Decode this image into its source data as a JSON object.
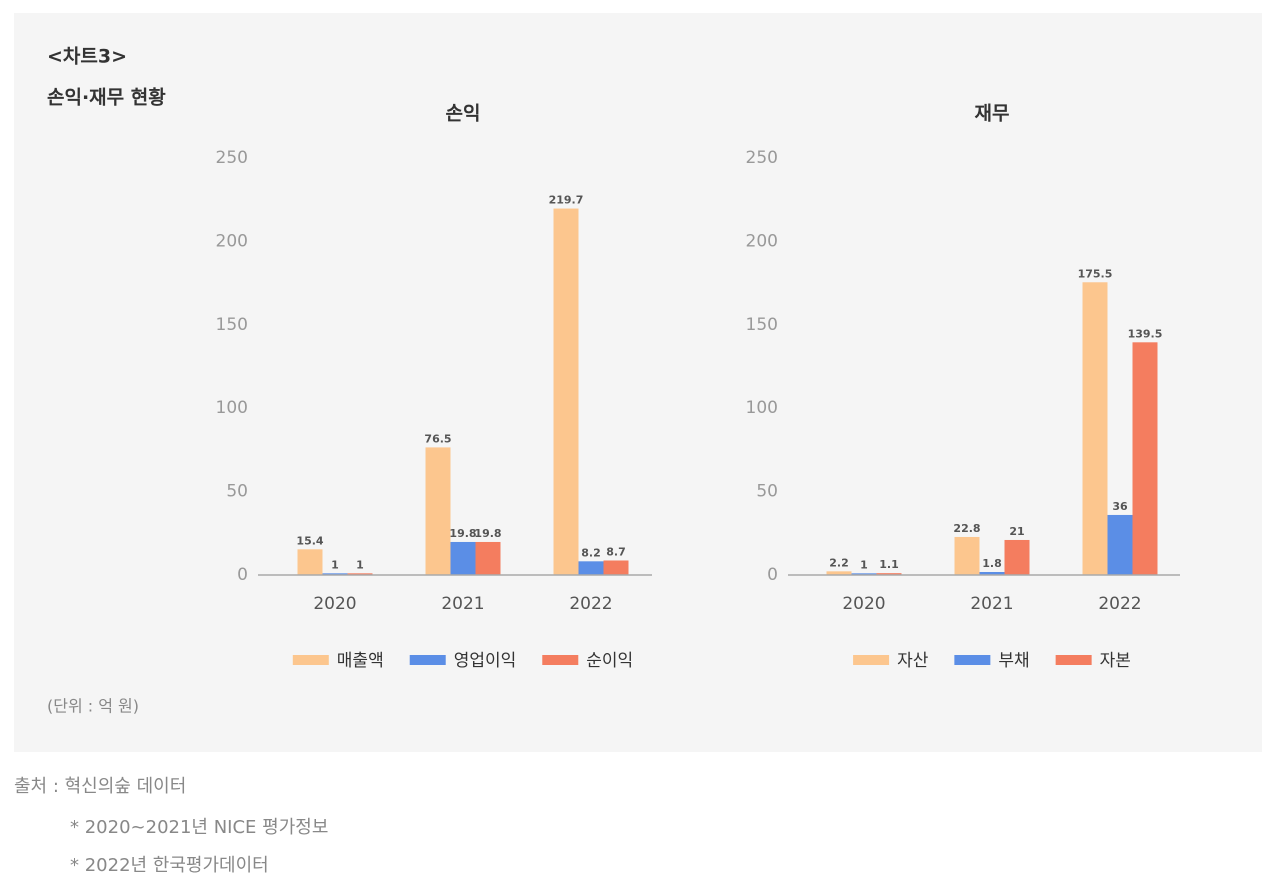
{
  "header": {
    "label": "<차트3>",
    "title": "손익·재무 현황"
  },
  "unit_note": "(단위 : 억 원)",
  "source": [
    "출처 : 혁신의숲 데이터",
    "* 2020~2021년 NICE 평가정보",
    "* 2022년 한국평가데이터"
  ],
  "chart_data": [
    {
      "type": "bar",
      "title": "손익",
      "categories": [
        "2020",
        "2021",
        "2022"
      ],
      "series": [
        {
          "name": "매출액",
          "color": "#fcc68e",
          "values": [
            15.4,
            76.5,
            219.7
          ]
        },
        {
          "name": "영업이익",
          "color": "#5b8ee6",
          "values": [
            1,
            19.8,
            8.2
          ]
        },
        {
          "name": "순이익",
          "color": "#f47d5f",
          "values": [
            1,
            19.8,
            8.7
          ]
        }
      ],
      "ylim": [
        0,
        250
      ],
      "yticks": [
        0,
        50,
        100,
        150,
        200,
        250
      ],
      "grid": false,
      "legend": "bottom"
    },
    {
      "type": "bar",
      "title": "재무",
      "categories": [
        "2020",
        "2021",
        "2022"
      ],
      "series": [
        {
          "name": "자산",
          "color": "#fcc68e",
          "values": [
            2.2,
            22.8,
            175.5
          ]
        },
        {
          "name": "부채",
          "color": "#5b8ee6",
          "values": [
            1,
            1.8,
            36
          ]
        },
        {
          "name": "자본",
          "color": "#f47d5f",
          "values": [
            1.1,
            21,
            139.5
          ]
        }
      ],
      "ylim": [
        0,
        250
      ],
      "yticks": [
        0,
        50,
        100,
        150,
        200,
        250
      ],
      "grid": false,
      "legend": "bottom"
    }
  ]
}
